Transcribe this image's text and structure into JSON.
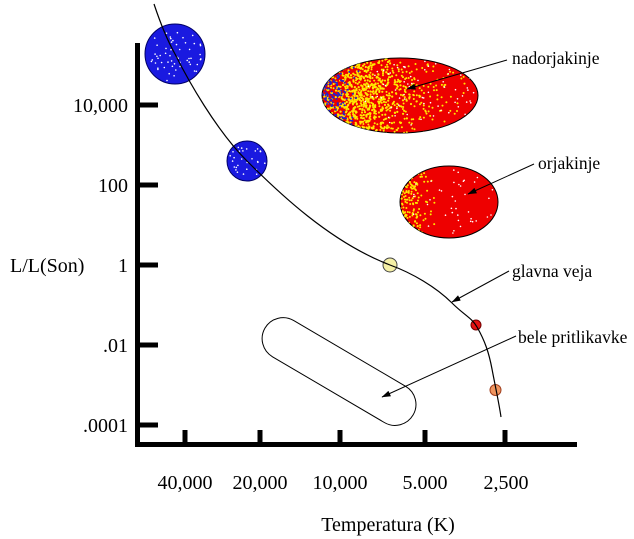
{
  "labels": {
    "y_axis": "L/L(Son)",
    "x_axis": "Temperatura (K)",
    "supergiants": "nadorjakinje",
    "giants": "orjakinje",
    "main_sequence": "glavna veja",
    "white_dwarfs": "bele pritlikavke"
  },
  "axis_ticks": {
    "y": [
      "10,000",
      "100",
      "1",
      ".01",
      ".0001"
    ],
    "x": [
      "40,000",
      "20,000",
      "10,000",
      "5.000",
      "2,500"
    ]
  },
  "colors": {
    "background": "#ffffff",
    "axis_black": "#000000",
    "curve_black": "#000000",
    "hot_star_blue": "#1a1ae0",
    "hot_star_outline": "#000066",
    "sun_yellow": "#f5f0a6",
    "sun_outline": "#444444",
    "red_dwarf": "#e41212",
    "red_dwarf_outline": "#700000",
    "orange_dwarf": "#f0955f",
    "orange_dwarf_outline": "#a04020",
    "region_red": "#ee0000",
    "region_outline": "#000000",
    "speckle_yellow": "#ffe800",
    "speckle_blue": "#2222cc",
    "star_speckle_white": "#ffffff"
  },
  "chart_data": {
    "type": "scatter",
    "title": "",
    "xlabel": "Temperatura (K)",
    "ylabel": "L/L(Son)",
    "x_tick_labels": [
      "40,000",
      "20,000",
      "10,000",
      "5.000",
      "2,500"
    ],
    "x_tick_values_K": [
      40000,
      20000,
      10000,
      5000,
      2500
    ],
    "y_tick_labels": [
      "10,000",
      "100",
      "1",
      ".01",
      ".0001"
    ],
    "y_tick_values": [
      10000,
      100,
      1,
      0.01,
      0.0001
    ],
    "axes": {
      "x_scale": "log2_reversed",
      "y_scale": "log10",
      "grid": false
    },
    "series": [
      {
        "name": "glavna veja",
        "kind": "main_sequence_stars",
        "points": [
          {
            "temperature_K": 45000,
            "luminosity_Lsun": 200000,
            "color": "blue",
            "size": "large"
          },
          {
            "temperature_K": 21000,
            "luminosity_Lsun": 400,
            "color": "blue",
            "size": "medium"
          },
          {
            "temperature_K": 6500,
            "luminosity_Lsun": 1,
            "color": "pale-yellow",
            "size": "small"
          },
          {
            "temperature_K": 3200,
            "luminosity_Lsun": 0.03,
            "color": "red",
            "size": "small"
          },
          {
            "temperature_K": 2700,
            "luminosity_Lsun": 0.0008,
            "color": "orange",
            "size": "small"
          }
        ]
      }
    ],
    "regions": [
      {
        "label": "nadorjakinje",
        "kind": "supergiants",
        "temperature_K_range": [
          11500,
          3000
        ],
        "luminosity_Lsun_range": [
          2000,
          150000
        ],
        "fill": "red with yellow and blue speckles"
      },
      {
        "label": "orjakinje",
        "kind": "giants",
        "temperature_K_range": [
          6200,
          2600
        ],
        "luminosity_Lsun_range": [
          5,
          300
        ],
        "fill": "red with yellow speckles"
      },
      {
        "label": "bele pritlikavke",
        "kind": "white_dwarfs",
        "temperature_K_range": [
          19000,
          5500
        ],
        "luminosity_Lsun_range": [
          0.0002,
          0.025
        ],
        "fill": "outline only"
      }
    ],
    "annotations": [
      {
        "text": "nadorjakinje",
        "arrow_to": "supergiants region"
      },
      {
        "text": "orjakinje",
        "arrow_to": "giants region"
      },
      {
        "text": "glavna veja",
        "arrow_to": "main sequence curve"
      },
      {
        "text": "bele pritlikavke",
        "arrow_to": "white dwarfs region"
      }
    ],
    "legend": "none"
  }
}
